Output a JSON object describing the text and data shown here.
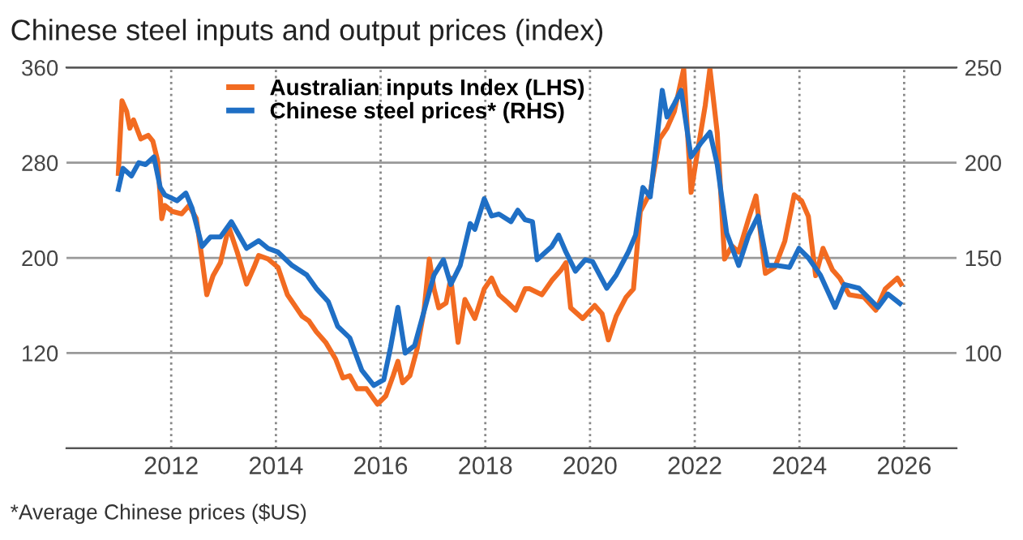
{
  "chart_data": {
    "type": "line",
    "title": "Chinese steel inputs and output prices (index)",
    "annotations": [
      "*Average Chinese prices ($US)"
    ],
    "xlim": [
      2010,
      2027
    ],
    "xticks": [
      2012,
      2014,
      2016,
      2018,
      2020,
      2022,
      2024,
      2026
    ],
    "ylim": [
      40,
      360
    ],
    "yticks": [
      120,
      200,
      280,
      360
    ],
    "y2lim": [
      50,
      250
    ],
    "y2ticks": [
      100,
      150,
      200,
      250
    ],
    "grid": true,
    "legend": "top left",
    "marker": "none",
    "line_style": "solid",
    "series": [
      {
        "name": "Australian inputs Index (LHS)",
        "color": "#f26b21",
        "x": [
          2010.99,
          2011.06,
          2011.15,
          2011.21,
          2011.28,
          2011.42,
          2011.56,
          2011.65,
          2011.74,
          2011.82,
          2011.88,
          2012.02,
          2012.2,
          2012.34,
          2012.48,
          2012.57,
          2012.68,
          2012.8,
          2012.94,
          2013.1,
          2013.26,
          2013.44,
          2013.58,
          2013.67,
          2013.85,
          2014.04,
          2014.22,
          2014.36,
          2014.5,
          2014.63,
          2014.77,
          2014.95,
          2015.14,
          2015.28,
          2015.41,
          2015.55,
          2015.73,
          2015.94,
          2016.1,
          2016.24,
          2016.33,
          2016.42,
          2016.56,
          2016.7,
          2016.83,
          2016.93,
          2017.02,
          2017.11,
          2017.25,
          2017.34,
          2017.48,
          2017.61,
          2017.8,
          2017.98,
          2018.12,
          2018.26,
          2018.44,
          2018.58,
          2018.76,
          2018.85,
          2019.08,
          2019.27,
          2019.45,
          2019.54,
          2019.63,
          2019.86,
          2020.09,
          2020.23,
          2020.35,
          2020.5,
          2020.69,
          2020.83,
          2020.96,
          2021.15,
          2021.33,
          2021.47,
          2021.61,
          2021.79,
          2021.93,
          2022.06,
          2022.2,
          2022.29,
          2022.43,
          2022.57,
          2022.71,
          2022.84,
          2023.03,
          2023.17,
          2023.35,
          2023.53,
          2023.72,
          2023.9,
          2024.04,
          2024.17,
          2024.31,
          2024.45,
          2024.63,
          2024.77,
          2024.95,
          2025.23,
          2025.46,
          2025.64,
          2025.87,
          2025.94
        ],
        "values": [
          271,
          332,
          323,
          309,
          316,
          300,
          303,
          298,
          282,
          233,
          244,
          239,
          237,
          244,
          233,
          205,
          169,
          185,
          196,
          226,
          205,
          178,
          192,
          202,
          199,
          192,
          169,
          160,
          151,
          147,
          138,
          129,
          115,
          99,
          101,
          90,
          90,
          77,
          84,
          101,
          113,
          95,
          101,
          124,
          156,
          199,
          174,
          158,
          162,
          183,
          129,
          165,
          149,
          174,
          183,
          169,
          162,
          156,
          174,
          174,
          169,
          181,
          190,
          196,
          158,
          149,
          160,
          153,
          131,
          151,
          167,
          174,
          239,
          255,
          300,
          309,
          323,
          359,
          255,
          291,
          328,
          359,
          305,
          199,
          210,
          205,
          233,
          252,
          187,
          192,
          214,
          253,
          248,
          235,
          185,
          208,
          190,
          183,
          169,
          167,
          156,
          174,
          183,
          178
        ]
      },
      {
        "name": "Chinese steel prices* (RHS)",
        "color": "#1f6fc5",
        "axis": "y2",
        "x": [
          2010.99,
          2011.08,
          2011.24,
          2011.38,
          2011.51,
          2011.67,
          2011.79,
          2011.88,
          2012.11,
          2012.28,
          2012.4,
          2012.59,
          2012.75,
          2012.94,
          2013.15,
          2013.44,
          2013.67,
          2013.85,
          2014.04,
          2014.31,
          2014.59,
          2014.77,
          2015.0,
          2015.18,
          2015.41,
          2015.64,
          2015.87,
          2016.06,
          2016.19,
          2016.33,
          2016.47,
          2016.65,
          2016.83,
          2017.02,
          2017.2,
          2017.34,
          2017.52,
          2017.71,
          2017.8,
          2017.98,
          2018.12,
          2018.26,
          2018.49,
          2018.62,
          2018.76,
          2018.9,
          2018.99,
          2019.27,
          2019.4,
          2019.54,
          2019.72,
          2019.91,
          2020.05,
          2020.32,
          2020.5,
          2020.73,
          2020.87,
          2021.01,
          2021.15,
          2021.28,
          2021.38,
          2021.47,
          2021.61,
          2021.74,
          2021.93,
          2022.11,
          2022.29,
          2022.43,
          2022.61,
          2022.84,
          2023.03,
          2023.21,
          2023.39,
          2023.58,
          2023.81,
          2023.99,
          2024.17,
          2024.4,
          2024.68,
          2024.86,
          2025.14,
          2025.5,
          2025.69,
          2025.92
        ],
        "values": [
          186,
          197,
          193,
          200,
          199,
          203,
          187,
          183,
          180,
          184,
          176,
          156,
          161,
          161,
          169,
          155,
          159,
          155,
          153,
          146,
          141,
          134,
          127,
          114,
          108,
          91,
          83,
          86,
          103,
          124,
          100,
          104,
          122,
          141,
          149,
          136,
          146,
          168,
          165,
          181,
          172,
          173,
          169,
          175,
          170,
          169,
          149,
          156,
          162,
          153,
          143,
          149,
          148,
          134,
          141,
          153,
          162,
          187,
          182,
          213,
          238,
          224,
          231,
          238,
          203,
          210,
          216,
          199,
          163,
          146,
          162,
          172,
          146,
          146,
          145,
          155,
          150,
          141,
          124,
          136,
          134,
          124,
          131,
          126
        ]
      }
    ]
  }
}
